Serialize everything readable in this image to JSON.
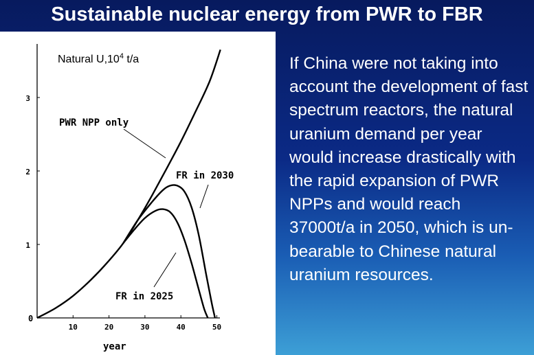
{
  "slide": {
    "title": "Sustainable nuclear energy from PWR to FBR",
    "body_text": "If China were not taking into account the development of fast spectrum reactors, the natural uranium demand per year would increase drastically with the rapid expansion of PWR NPPs and would reach 37000t/a in 2050, which is un-bearable to Chinese natural uranium resources.",
    "colors": {
      "background_top": "#071a5e",
      "background_bottom": "#3d9fd6",
      "text": "#ffffff",
      "chart_background": "#ffffff",
      "chart_ink": "#000000"
    }
  },
  "chart_data": {
    "type": "line",
    "ylabel_main": "Natural U,10",
    "ylabel_sup": "4",
    "ylabel_unit": " t/a",
    "xlabel": "year",
    "xlim": [
      0,
      50
    ],
    "ylim": [
      0,
      3.7
    ],
    "x_ticks": [
      10,
      20,
      30,
      40,
      50
    ],
    "x_tick_labels": [
      "10",
      "20",
      "30",
      "40",
      "50"
    ],
    "y_ticks": [
      1,
      2,
      3
    ],
    "y_tick_labels": [
      "1",
      "2",
      "3"
    ],
    "origin_label": "0",
    "grid": false,
    "series": [
      {
        "name": "PWR NPP only",
        "x": [
          0,
          5,
          10,
          15,
          20,
          24,
          28,
          32,
          36,
          40,
          44,
          48,
          51
        ],
        "y": [
          0,
          0.13,
          0.3,
          0.52,
          0.78,
          1.02,
          1.33,
          1.67,
          2.03,
          2.4,
          2.8,
          3.22,
          3.65
        ]
      },
      {
        "name": "FR in 2030",
        "x": [
          24,
          28,
          32,
          35,
          37,
          39,
          41,
          43,
          45,
          47,
          48.5,
          49.5
        ],
        "y": [
          1.02,
          1.33,
          1.58,
          1.74,
          1.8,
          1.8,
          1.72,
          1.5,
          1.12,
          0.6,
          0.22,
          0
        ]
      },
      {
        "name": "FR in 2025",
        "x": [
          24,
          27,
          30,
          33,
          35,
          37,
          39,
          41,
          43,
          45,
          46.5,
          47.5
        ],
        "y": [
          1.02,
          1.2,
          1.36,
          1.46,
          1.48,
          1.44,
          1.3,
          1.06,
          0.74,
          0.38,
          0.12,
          0
        ]
      }
    ],
    "annotations": [
      {
        "text": "PWR NPP only",
        "target_series": 0
      },
      {
        "text": "FR in 2030",
        "target_series": 1
      },
      {
        "text": "FR in 2025",
        "target_series": 2
      }
    ]
  }
}
